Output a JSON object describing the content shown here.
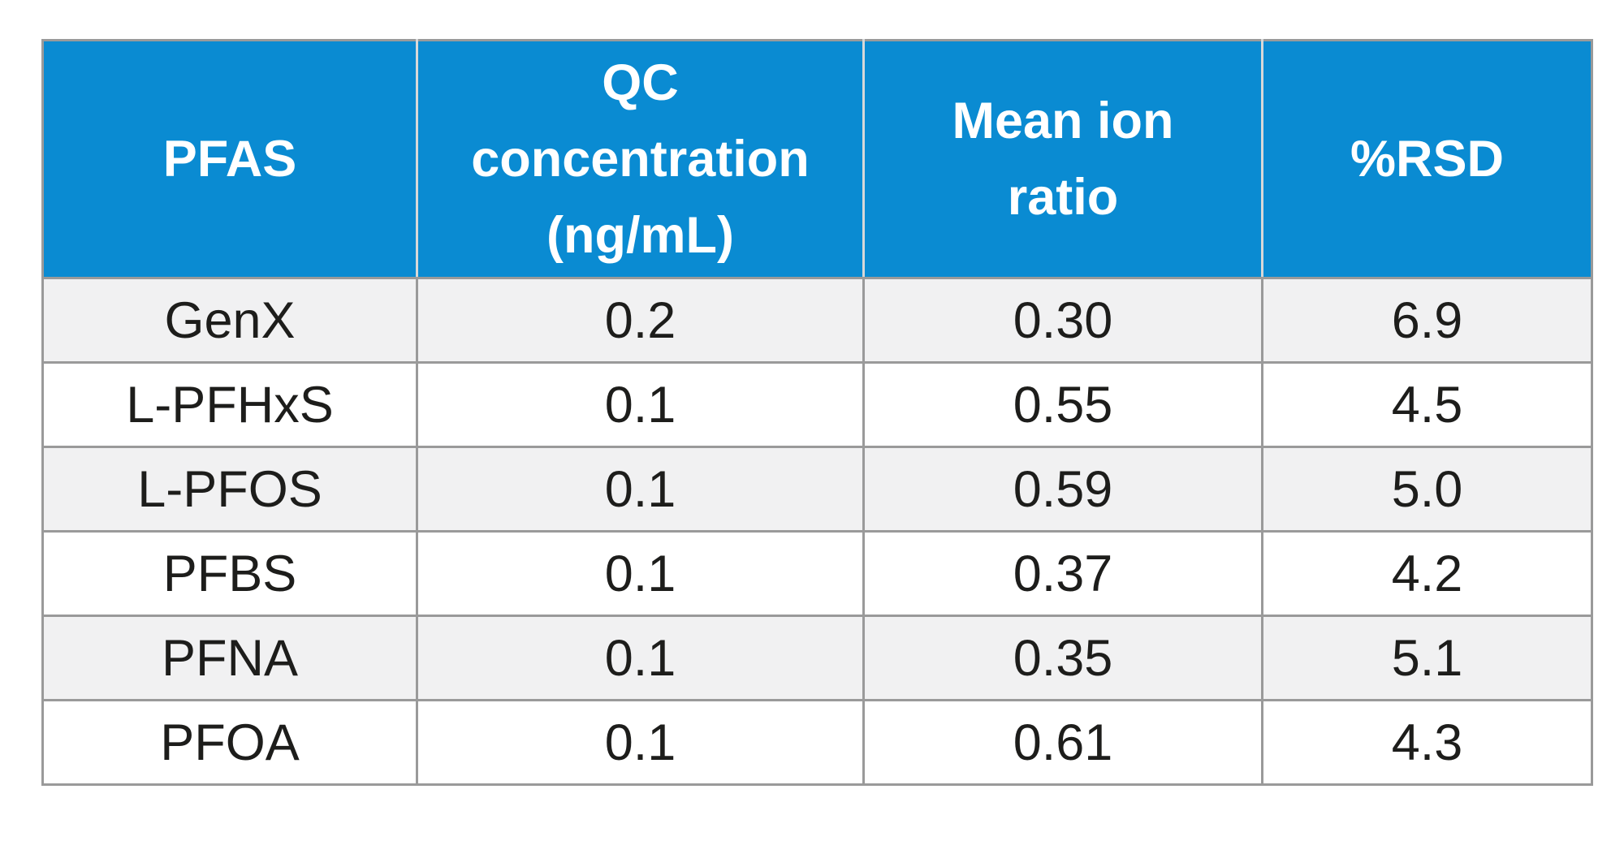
{
  "table": {
    "headers": [
      {
        "lines": [
          "PFAS"
        ]
      },
      {
        "lines": [
          "QC",
          "concentration",
          "(ng/mL)"
        ]
      },
      {
        "lines": [
          "Mean ion",
          "ratio"
        ]
      },
      {
        "lines": [
          "%RSD"
        ]
      }
    ],
    "rows": [
      [
        "GenX",
        "0.2",
        "0.30",
        "6.9"
      ],
      [
        "L-PFHxS",
        "0.1",
        "0.55",
        "4.5"
      ],
      [
        "L-PFOS",
        "0.1",
        "0.59",
        "5.0"
      ],
      [
        "PFBS",
        "0.1",
        "0.37",
        "4.2"
      ],
      [
        "PFNA",
        "0.1",
        "0.35",
        "5.1"
      ],
      [
        "PFOA",
        "0.1",
        "0.61",
        "4.3"
      ]
    ],
    "colors": {
      "header_bg": "#0a8bd2",
      "header_text": "#ffffff",
      "row_alt_bg": "#f1f1f2",
      "row_bg": "#ffffff",
      "border": "#9a9a9a"
    }
  }
}
